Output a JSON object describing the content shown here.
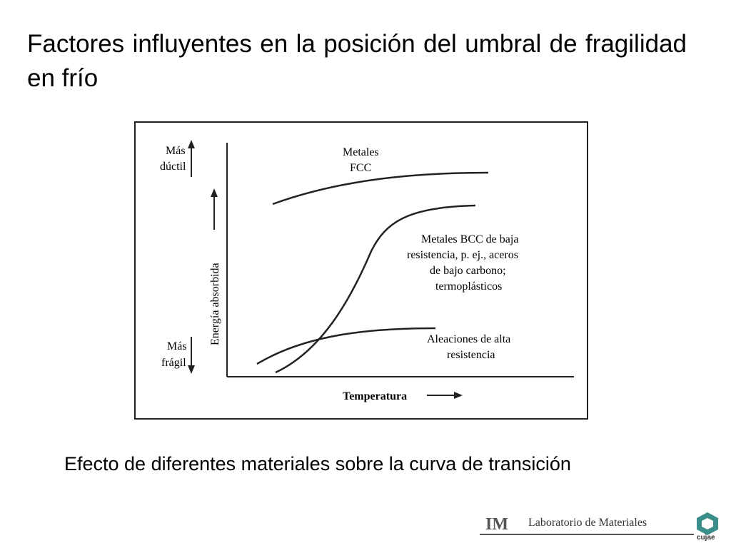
{
  "slide": {
    "title": "Factores influyentes en la posición del umbral de fragilidad en frío",
    "caption": "Efecto de diferentes materiales sobre la curva de transición"
  },
  "figure": {
    "more_ductile": [
      "Más",
      "dúctil"
    ],
    "more_brittle": [
      "Más",
      "frágil"
    ],
    "y_axis_label": "Energía absorbida",
    "x_axis_label": "Temperatura",
    "curves": {
      "fcc": [
        "Metales",
        "FCC"
      ],
      "bcc": [
        "Metales BCC de baja",
        "resistencia, p. ej., aceros",
        "de bajo carbono;",
        "termoplásticos"
      ],
      "high_strength": [
        "Aleaciones de alta",
        "resistencia"
      ]
    }
  },
  "footer": {
    "lab_logo_letters": "IM",
    "lab_name": "Laboratorio de Materiales",
    "institution": "cujae"
  },
  "colors": {
    "ink": "#222222",
    "cujae_green": "#3a8f8a"
  }
}
